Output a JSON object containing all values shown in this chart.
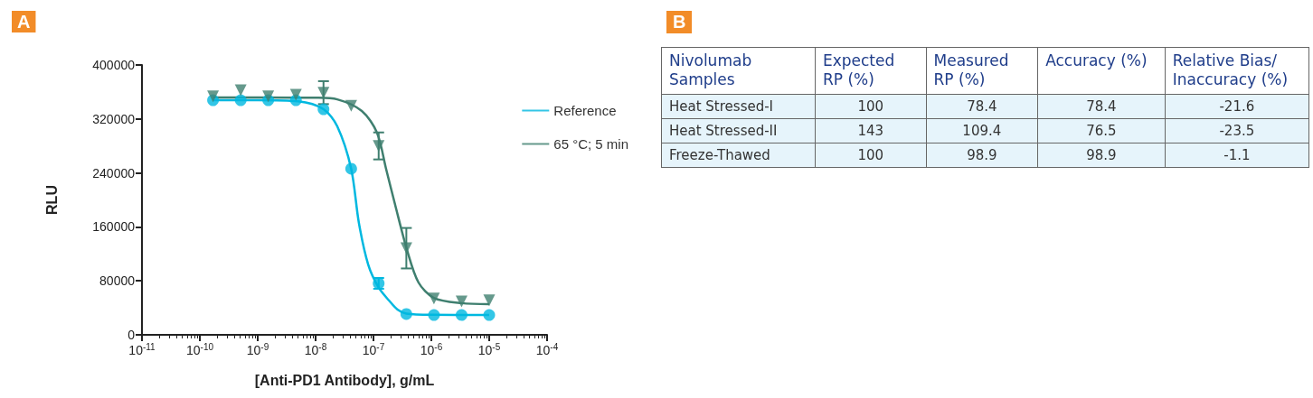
{
  "chart_data": [
    {
      "type": "scatter",
      "title": "A",
      "xlabel": "[Anti-PD1 Antibody], g/mL",
      "ylabel": "RLU",
      "log": "x",
      "legend": "right",
      "xlim": [
        1e-11,
        0.0001
      ],
      "xticks": [
        {
          "value": 1e-11,
          "label": "10$^{-11}$"
        },
        {
          "value": 1e-10,
          "label": "10$^{-10}$"
        },
        {
          "value": 1e-09,
          "label": "10$^{-9}$"
        },
        {
          "value": 1e-08,
          "label": "10$^{-8}$"
        },
        {
          "value": 1e-07,
          "label": "10$^{-7}$"
        },
        {
          "value": 1e-06,
          "label": "10$^{-6}$"
        },
        {
          "value": 1e-05,
          "label": "10$^{-5}$"
        },
        {
          "value": 0.0001,
          "label": "10$^{-4}$"
        }
      ],
      "ylim": [
        0,
        400000
      ],
      "yticks": [
        0,
        80000,
        160000,
        240000,
        320000,
        400000
      ],
      "series": [
        {
          "name": "Reference",
          "type": "scatter",
          "color": "#00b8e0",
          "marker": "circle",
          "x": [
            1.69e-10,
            5.08e-10,
            1.52e-09,
            4.57e-09,
            1.37e-08,
            4.12e-08,
            1.23e-07,
            3.7e-07,
            1.11e-06,
            3.33e-06,
            1e-05
          ],
          "values": [
            347800,
            347800,
            347800,
            347800,
            334400,
            246200,
            76300,
            30800,
            29400,
            29400,
            29400
          ],
          "errors": [
            null,
            null,
            null,
            null,
            null,
            null,
            8000,
            null,
            null,
            null,
            null
          ]
        },
        {
          "name": "65 °C; 5 min",
          "type": "scatter",
          "color": "#3f7f6f",
          "marker": "triangle",
          "x": [
            1.69e-10,
            5.08e-10,
            1.52e-09,
            4.57e-09,
            1.37e-08,
            4.12e-08,
            1.23e-07,
            3.7e-07,
            1.11e-06,
            3.33e-06,
            1e-05
          ],
          "values": [
            353600,
            362500,
            353600,
            355900,
            359000,
            339400,
            280000,
            128400,
            53900,
            49500,
            51200
          ],
          "errors": [
            null,
            null,
            null,
            null,
            17000,
            null,
            20000,
            30000,
            null,
            null,
            null
          ]
        },
        {
          "type": "line",
          "color": "#00b8e0",
          "marker": "none",
          "x": [
            1.69e-10,
            1e-09,
            5e-09,
            1.37e-08,
            2.37e-08,
            4.12e-08,
            5.6e-08,
            8.1e-08,
            1.23e-07,
            1.86e-07,
            2.6e-07,
            3.7e-07,
            1e-06,
            1e-05
          ],
          "values": [
            347800,
            347800,
            346000,
            334400,
            309000,
            246200,
            165900,
            104300,
            70000,
            50800,
            37500,
            31500,
            29600,
            29400
          ]
        },
        {
          "type": "line",
          "color": "#3f7f6f",
          "marker": "none",
          "x": [
            1.69e-10,
            1e-09,
            1e-08,
            2.37e-08,
            6.3e-08,
            1.15e-07,
            1.65e-07,
            2.37e-07,
            3.8e-07,
            6e-07,
            1.1e-06,
            3.33e-06,
            1e-05
          ],
          "values": [
            352000,
            352000,
            351500,
            349000,
            331700,
            299700,
            246200,
            192600,
            125800,
            77600,
            54800,
            47000,
            45500
          ]
        }
      ]
    },
    {
      "type": "other",
      "title": "B",
      "categories": [
        "Nivolumab Samples",
        "Expected RP (%)",
        "Measured RP (%)",
        "Accuracy (%)",
        "Relative Bias/ Inaccuracy (%)"
      ],
      "y_categories": [
        "Heat Stressed-I",
        "Heat Stressed-II",
        "Freeze-Thawed"
      ],
      "cell_labels": [
        [
          "100",
          "78.4",
          "78.4",
          "-21.6"
        ],
        [
          "143",
          "109.4",
          "76.5",
          "-23.5"
        ],
        [
          "100",
          "98.9",
          "98.9",
          "-1.1"
        ]
      ]
    }
  ]
}
